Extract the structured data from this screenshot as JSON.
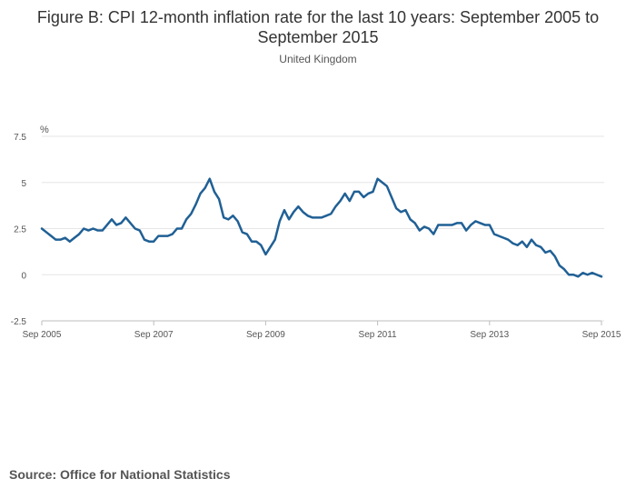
{
  "chart_data": {
    "type": "line",
    "title": "Figure B: CPI 12-month inflation rate for the last 10 years: September 2005 to September 2015",
    "subtitle": "United Kingdom",
    "ylabel": "%",
    "xlabel": "",
    "ylim": [
      -2.5,
      7.5
    ],
    "yticks": [
      "7.5",
      "5",
      "2.5",
      "0",
      "-2.5"
    ],
    "xticks": [
      "Sep 2005",
      "Sep 2007",
      "Sep 2009",
      "Sep 2011",
      "Sep 2013",
      "Sep 2015"
    ],
    "grid": true,
    "legend": "none",
    "x_start": "Sep 2005",
    "x_end": "Sep 2015",
    "series": [
      {
        "color": "#206095",
        "values": [
          2.5,
          2.3,
          2.1,
          1.9,
          1.9,
          2.0,
          1.8,
          2.0,
          2.2,
          2.5,
          2.4,
          2.5,
          2.4,
          2.4,
          2.7,
          3.0,
          2.7,
          2.8,
          3.1,
          2.8,
          2.5,
          2.4,
          1.9,
          1.8,
          1.8,
          2.1,
          2.1,
          2.1,
          2.2,
          2.5,
          2.5,
          3.0,
          3.3,
          3.8,
          4.4,
          4.7,
          5.2,
          4.5,
          4.1,
          3.1,
          3.0,
          3.2,
          2.9,
          2.3,
          2.2,
          1.8,
          1.8,
          1.6,
          1.1,
          1.5,
          1.9,
          2.9,
          3.5,
          3.0,
          3.4,
          3.7,
          3.4,
          3.2,
          3.1,
          3.1,
          3.1,
          3.2,
          3.3,
          3.7,
          4.0,
          4.4,
          4.0,
          4.5,
          4.5,
          4.2,
          4.4,
          4.5,
          5.2,
          5.0,
          4.8,
          4.2,
          3.6,
          3.4,
          3.5,
          3.0,
          2.8,
          2.4,
          2.6,
          2.5,
          2.2,
          2.7,
          2.7,
          2.7,
          2.7,
          2.8,
          2.8,
          2.4,
          2.7,
          2.9,
          2.8,
          2.7,
          2.7,
          2.2,
          2.1,
          2.0,
          1.9,
          1.7,
          1.6,
          1.8,
          1.5,
          1.9,
          1.6,
          1.5,
          1.2,
          1.3,
          1.0,
          0.5,
          0.3,
          0.0,
          0.0,
          -0.1,
          0.1,
          0.0,
          0.1,
          0.0,
          -0.1
        ]
      }
    ]
  },
  "source": "Source: Office for National Statistics"
}
